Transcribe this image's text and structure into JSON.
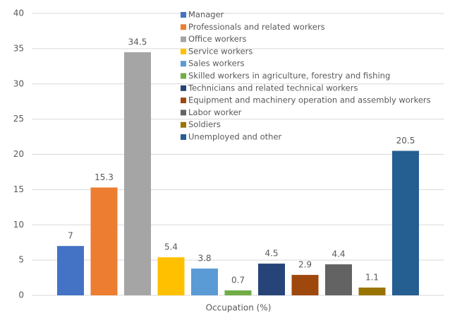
{
  "chart_data": {
    "type": "bar",
    "x_label": "Occupation (%)",
    "categories": [
      "Manager",
      "Professionals and related workers",
      "Office workers",
      "Service workers",
      "Sales workers",
      "Skilled workers in agriculture, forestry and fishing",
      "Technicians and related technical workers",
      "Equipment and machinery operation and assembly workers",
      "Labor worker",
      "Soldiers",
      "Unemployed and other"
    ],
    "values": [
      7,
      15.3,
      34.5,
      5.4,
      3.8,
      0.7,
      4.5,
      2.9,
      4.4,
      1.1,
      20.5
    ],
    "colors": [
      "#4472c4",
      "#ed7d31",
      "#a5a5a5",
      "#ffc000",
      "#5b9bd5",
      "#70ad47",
      "#264478",
      "#9e480e",
      "#636363",
      "#997300",
      "#255e91"
    ],
    "ylim": [
      0,
      40
    ],
    "yticks": [
      0,
      5,
      10,
      15,
      20,
      25,
      30,
      35,
      40
    ],
    "grid": true,
    "legend": "top"
  }
}
